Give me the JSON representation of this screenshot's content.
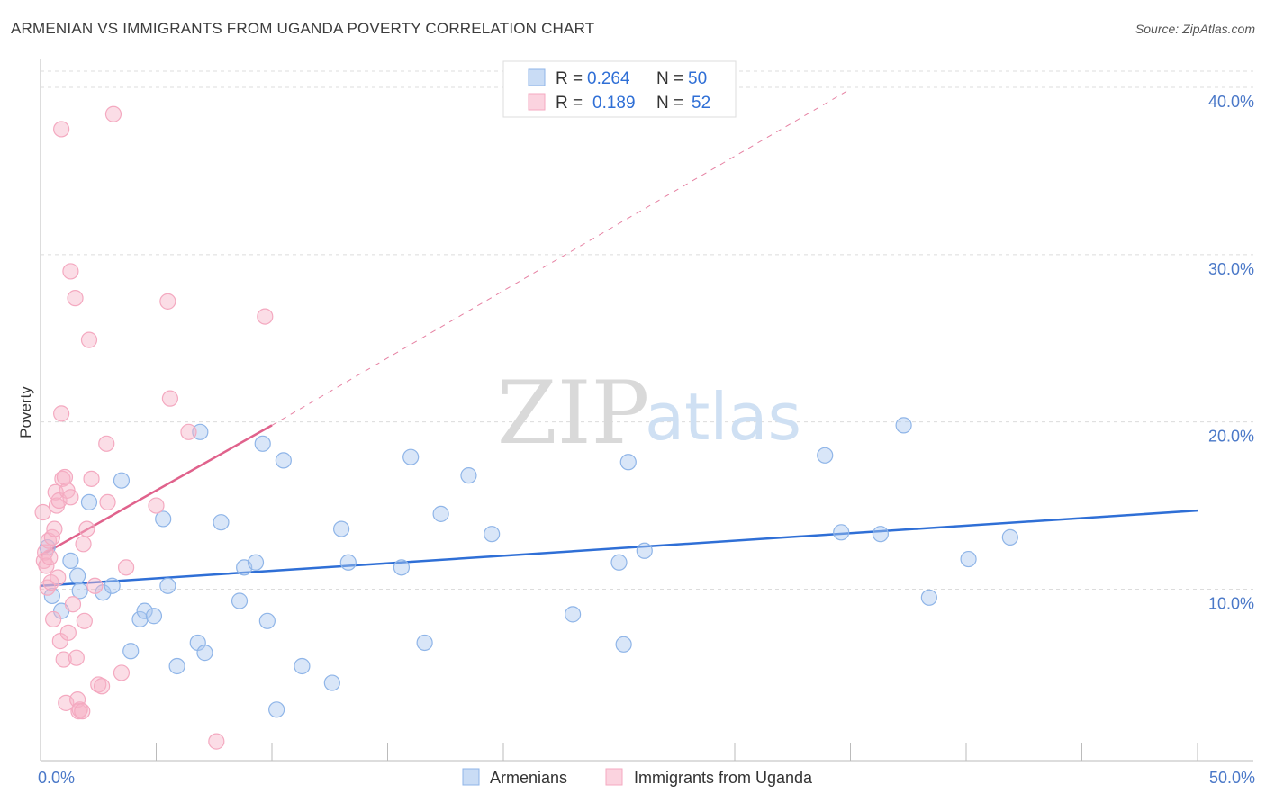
{
  "title": "ARMENIAN VS IMMIGRANTS FROM UGANDA POVERTY CORRELATION CHART",
  "source": "Source: ZipAtlas.com",
  "watermark": {
    "zip": "ZIP",
    "atlas": "atlas"
  },
  "chart_data": {
    "type": "scatter",
    "ylabel": "Poverty",
    "xlim": [
      0,
      50
    ],
    "ylim": [
      0,
      42
    ],
    "y_ticks": [
      {
        "value": 10,
        "label": "10.0%"
      },
      {
        "value": 20,
        "label": "20.0%"
      },
      {
        "value": 30,
        "label": "30.0%"
      },
      {
        "value": 40,
        "label": "40.0%"
      }
    ],
    "x_tick_labels": [
      {
        "value": 0,
        "label": "0.0%"
      },
      {
        "value": 50,
        "label": "50.0%"
      }
    ],
    "x_minor_ticks": [
      0,
      5,
      10,
      15,
      20,
      25,
      30,
      35,
      40,
      45,
      50
    ],
    "grid": true,
    "legend_position": "top-center",
    "series": [
      {
        "name": "Armenians",
        "color": "#8fb5e8",
        "line_color": "#2f6fd6",
        "stats": {
          "r_label": "R =",
          "r": "0.264",
          "n_label": "N =",
          "n": "50"
        },
        "trend": {
          "x0": 0,
          "y0": 10.2,
          "x1": 50,
          "y1": 14.7,
          "dashed_to": null
        },
        "points": [
          [
            0.3,
            12.5
          ],
          [
            0.5,
            9.6
          ],
          [
            0.9,
            8.7
          ],
          [
            1.3,
            11.7
          ],
          [
            1.6,
            10.8
          ],
          [
            1.7,
            9.9
          ],
          [
            2.1,
            15.2
          ],
          [
            2.7,
            9.8
          ],
          [
            3.1,
            10.2
          ],
          [
            3.5,
            16.5
          ],
          [
            3.9,
            6.3
          ],
          [
            4.3,
            8.2
          ],
          [
            4.5,
            8.7
          ],
          [
            4.9,
            8.4
          ],
          [
            5.3,
            14.2
          ],
          [
            5.5,
            10.2
          ],
          [
            5.9,
            5.4
          ],
          [
            6.8,
            6.8
          ],
          [
            6.9,
            19.4
          ],
          [
            7.1,
            6.2
          ],
          [
            7.8,
            14.0
          ],
          [
            8.6,
            9.3
          ],
          [
            8.8,
            11.3
          ],
          [
            9.3,
            11.6
          ],
          [
            9.6,
            18.7
          ],
          [
            9.8,
            8.1
          ],
          [
            10.2,
            2.8
          ],
          [
            10.5,
            17.7
          ],
          [
            11.3,
            5.4
          ],
          [
            12.6,
            4.4
          ],
          [
            13.0,
            13.6
          ],
          [
            13.3,
            11.6
          ],
          [
            15.6,
            11.3
          ],
          [
            16.0,
            17.9
          ],
          [
            16.6,
            6.8
          ],
          [
            17.3,
            14.5
          ],
          [
            18.5,
            16.8
          ],
          [
            19.5,
            13.3
          ],
          [
            23.0,
            8.5
          ],
          [
            25.0,
            11.6
          ],
          [
            25.2,
            6.7
          ],
          [
            25.4,
            17.6
          ],
          [
            26.1,
            12.3
          ],
          [
            33.9,
            18.0
          ],
          [
            34.6,
            13.4
          ],
          [
            36.3,
            13.3
          ],
          [
            37.3,
            19.8
          ],
          [
            38.4,
            9.5
          ],
          [
            40.1,
            11.8
          ],
          [
            41.9,
            13.1
          ]
        ]
      },
      {
        "name": "Immigrants from Uganda",
        "color": "#f4a9c0",
        "line_color": "#e0628c",
        "stats": {
          "r_label": "R =",
          "r": "0.189",
          "n_label": "N =",
          "n": "52"
        },
        "trend": {
          "x0": 0,
          "y0": 12.0,
          "x1": 10,
          "y1": 19.8,
          "dashed_to": {
            "x": 35,
            "y": 39.9
          }
        },
        "points": [
          [
            0.1,
            14.6
          ],
          [
            0.15,
            11.7
          ],
          [
            0.2,
            12.2
          ],
          [
            0.25,
            11.4
          ],
          [
            0.3,
            10.1
          ],
          [
            0.35,
            12.9
          ],
          [
            0.4,
            11.9
          ],
          [
            0.45,
            10.4
          ],
          [
            0.5,
            13.1
          ],
          [
            0.55,
            8.2
          ],
          [
            0.6,
            13.6
          ],
          [
            0.65,
            15.8
          ],
          [
            0.7,
            15.0
          ],
          [
            0.75,
            10.7
          ],
          [
            0.8,
            15.3
          ],
          [
            0.85,
            6.9
          ],
          [
            0.9,
            37.5
          ],
          [
            0.9,
            20.5
          ],
          [
            0.95,
            16.6
          ],
          [
            1.0,
            5.8
          ],
          [
            1.05,
            16.7
          ],
          [
            1.1,
            3.2
          ],
          [
            1.15,
            15.9
          ],
          [
            1.2,
            7.4
          ],
          [
            1.3,
            15.5
          ],
          [
            1.3,
            29.0
          ],
          [
            1.4,
            9.1
          ],
          [
            1.5,
            27.4
          ],
          [
            1.55,
            5.9
          ],
          [
            1.6,
            3.4
          ],
          [
            1.65,
            2.7
          ],
          [
            1.7,
            2.8
          ],
          [
            1.8,
            2.7
          ],
          [
            1.85,
            12.7
          ],
          [
            1.9,
            8.1
          ],
          [
            2.0,
            13.6
          ],
          [
            2.1,
            24.9
          ],
          [
            2.2,
            16.6
          ],
          [
            2.35,
            10.2
          ],
          [
            2.5,
            4.3
          ],
          [
            2.65,
            4.2
          ],
          [
            2.85,
            18.7
          ],
          [
            2.9,
            15.2
          ],
          [
            3.15,
            38.4
          ],
          [
            3.5,
            5.0
          ],
          [
            3.7,
            11.3
          ],
          [
            5.0,
            15.0
          ],
          [
            5.5,
            27.2
          ],
          [
            5.6,
            21.4
          ],
          [
            6.4,
            19.4
          ],
          [
            7.6,
            0.9
          ],
          [
            9.7,
            26.3
          ]
        ]
      }
    ]
  }
}
